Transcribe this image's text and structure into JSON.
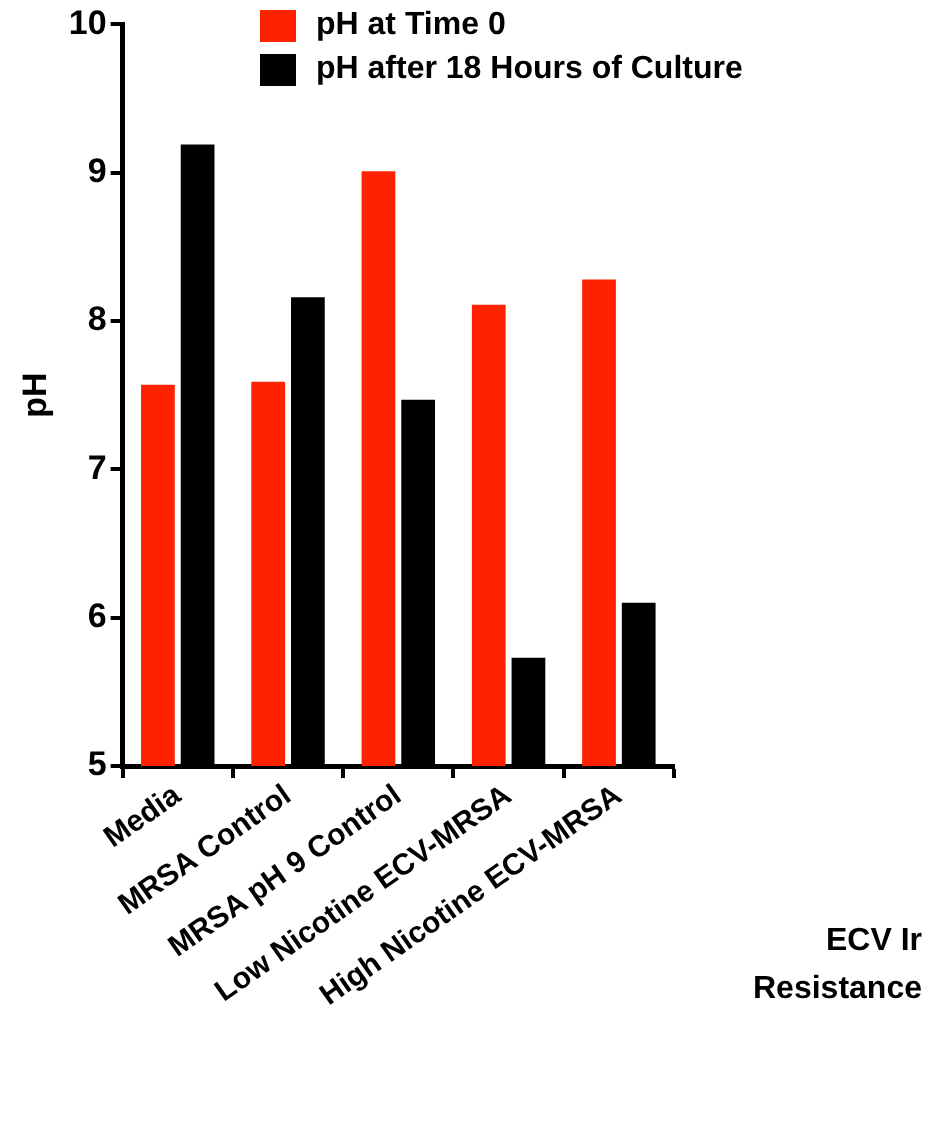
{
  "chart_data": {
    "type": "bar",
    "ylabel": "pH",
    "categories": [
      "Media",
      "MRSA Control",
      "MRSA pH 9 Control",
      "Low Nicotine ECV-MRSA",
      "High Nicotine ECV-MRSA"
    ],
    "series": [
      {
        "name": "pH at Time 0",
        "color": "#ff2200",
        "values": [
          7.57,
          7.59,
          9.01,
          8.11,
          8.28
        ]
      },
      {
        "name": "pH after 18 Hours of Culture",
        "color": "#000000",
        "values": [
          9.19,
          8.16,
          7.47,
          5.73,
          6.1
        ]
      }
    ],
    "ylim": [
      5,
      10
    ],
    "yticks": [
      5,
      6,
      7,
      8,
      9,
      10
    ],
    "grid": false,
    "legend": "top right",
    "annotations": [
      "ECV Ir",
      "Resistance"
    ]
  }
}
